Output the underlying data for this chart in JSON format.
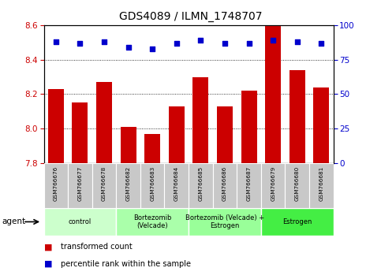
{
  "title": "GDS4089 / ILMN_1748707",
  "samples": [
    "GSM766676",
    "GSM766677",
    "GSM766678",
    "GSM766682",
    "GSM766683",
    "GSM766684",
    "GSM766685",
    "GSM766686",
    "GSM766687",
    "GSM766679",
    "GSM766680",
    "GSM766681"
  ],
  "bar_values": [
    8.23,
    8.15,
    8.27,
    8.01,
    7.97,
    8.13,
    8.3,
    8.13,
    8.22,
    8.6,
    8.34,
    8.24
  ],
  "dot_values": [
    88,
    87,
    88,
    84,
    83,
    87,
    89,
    87,
    87,
    89,
    88,
    87
  ],
  "ylim_left": [
    7.8,
    8.6
  ],
  "ylim_right": [
    0,
    100
  ],
  "yticks_left": [
    7.8,
    8.0,
    8.2,
    8.4,
    8.6
  ],
  "yticks_right": [
    0,
    25,
    50,
    75,
    100
  ],
  "bar_color": "#cc0000",
  "dot_color": "#0000cc",
  "groups": [
    {
      "label": "control",
      "start": 0,
      "end": 3,
      "color": "#ccffcc"
    },
    {
      "label": "Bortezomib\n(Velcade)",
      "start": 3,
      "end": 6,
      "color": "#aaffaa"
    },
    {
      "label": "Bortezomib (Velcade) +\nEstrogen",
      "start": 6,
      "end": 9,
      "color": "#99ff99"
    },
    {
      "label": "Estrogen",
      "start": 9,
      "end": 12,
      "color": "#44ee44"
    }
  ],
  "legend_bar_label": "transformed count",
  "legend_dot_label": "percentile rank within the sample",
  "agent_label": "agent",
  "tick_label_color_left": "#cc0000",
  "tick_label_color_right": "#0000cc"
}
